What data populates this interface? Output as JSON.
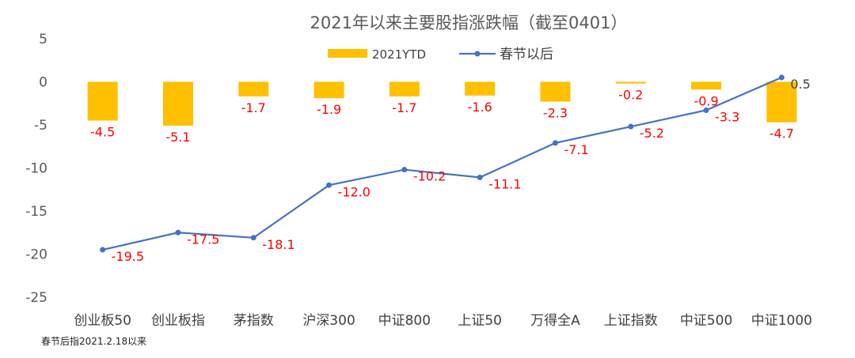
{
  "chart_data": {
    "type": "bar",
    "title": "2021年以来主要股指涨跌幅（截至0401）",
    "categories": [
      "创业板50",
      "创业板指",
      "茅指数",
      "沪深300",
      "中证800",
      "上证50",
      "万得全A",
      "上证指数",
      "中证500",
      "中证1000"
    ],
    "series": [
      {
        "name": "2021YTD",
        "type": "bar",
        "color": "#FFC000",
        "values": [
          -4.5,
          -5.1,
          -1.7,
          -1.9,
          -1.7,
          -1.6,
          -2.3,
          -0.2,
          -0.9,
          -4.7
        ]
      },
      {
        "name": "春节以后",
        "type": "line",
        "color": "#4472C4",
        "values": [
          -19.5,
          -17.5,
          -18.1,
          -12.0,
          -10.2,
          -11.1,
          -7.1,
          -5.2,
          -3.3,
          0.5
        ]
      }
    ],
    "yticks": [
      "5",
      "0",
      "-5",
      "-10",
      "-15",
      "-20",
      "-25"
    ],
    "ylim": [
      -25,
      5
    ],
    "label_color": "#FF0000",
    "legend_position": "top-center",
    "grid": false
  },
  "footnote": "春节后指2021.2.18以来"
}
